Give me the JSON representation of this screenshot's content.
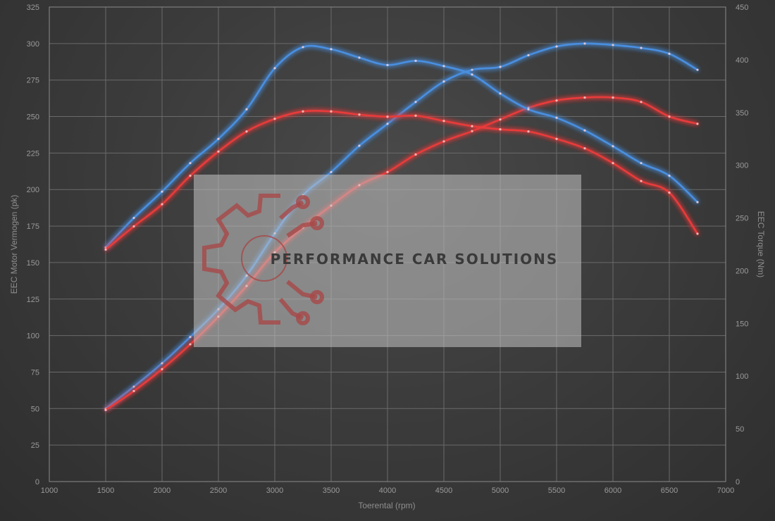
{
  "chart_data": {
    "type": "line",
    "xlabel": "Toerental (rpm)",
    "ylabel_left": "EEC Motor Vermogen (pk)",
    "ylabel_right": "EEC Torque (Nm)",
    "xlim": [
      1000,
      7000
    ],
    "ylim_left": [
      0,
      325
    ],
    "ylim_right": [
      0,
      450
    ],
    "x_ticks": [
      1000,
      1500,
      2000,
      2500,
      3000,
      3500,
      4000,
      4500,
      5000,
      5500,
      6000,
      6500,
      7000
    ],
    "y_left_ticks": [
      0,
      25,
      50,
      75,
      100,
      125,
      150,
      175,
      200,
      225,
      250,
      275,
      300,
      325
    ],
    "y_right_ticks": [
      0,
      50,
      100,
      150,
      200,
      250,
      300,
      350,
      400,
      450
    ],
    "grid": true,
    "series": [
      {
        "axis": "left",
        "color": "#4a8fe0",
        "x": [
          1500,
          1750,
          2000,
          2250,
          2500,
          2750,
          3000,
          3250,
          3500,
          3750,
          4000,
          4250,
          4500,
          4750,
          5000,
          5250,
          5500,
          5750,
          6000,
          6250,
          6500,
          6750
        ],
        "y": [
          50,
          65,
          81,
          99,
          118,
          141,
          170,
          196,
          212,
          230,
          245,
          260,
          274,
          282,
          284,
          292,
          298,
          300,
          299,
          297,
          293,
          282
        ]
      },
      {
        "axis": "left",
        "color": "#e83a3a",
        "x": [
          1500,
          1750,
          2000,
          2250,
          2500,
          2750,
          3000,
          3250,
          3500,
          3750,
          4000,
          4250,
          4500,
          4750,
          5000,
          5250,
          5500,
          5750,
          6000,
          6250,
          6500,
          6750
        ],
        "y": [
          49,
          62,
          77,
          94,
          113,
          134,
          157,
          174,
          189,
          203,
          212,
          224,
          233,
          240,
          248,
          256,
          261,
          263,
          263,
          260,
          250,
          245
        ]
      },
      {
        "axis": "right",
        "color": "#4a8fe0",
        "x": [
          1500,
          1750,
          2000,
          2250,
          2500,
          2750,
          3000,
          3250,
          3500,
          3750,
          4000,
          4250,
          4500,
          4750,
          5000,
          5250,
          5500,
          5750,
          6000,
          6250,
          6500,
          6750
        ],
        "y": [
          222,
          250,
          275,
          302,
          325,
          353,
          392,
          412,
          410,
          402,
          395,
          399,
          394,
          386,
          368,
          353,
          345,
          333,
          318,
          302,
          290,
          265
        ]
      },
      {
        "axis": "right",
        "color": "#e83a3a",
        "x": [
          1500,
          1750,
          2000,
          2250,
          2500,
          2750,
          3000,
          3250,
          3500,
          3750,
          4000,
          4250,
          4500,
          4750,
          5000,
          5250,
          5500,
          5750,
          6000,
          6250,
          6500,
          6750
        ],
        "y": [
          220,
          242,
          263,
          290,
          313,
          332,
          344,
          351,
          351,
          348,
          346,
          347,
          342,
          337,
          334,
          332,
          325,
          316,
          302,
          285,
          274,
          235
        ]
      }
    ]
  },
  "watermark": {
    "text": "PERFORMANCE CAR SOLUTIONS"
  }
}
